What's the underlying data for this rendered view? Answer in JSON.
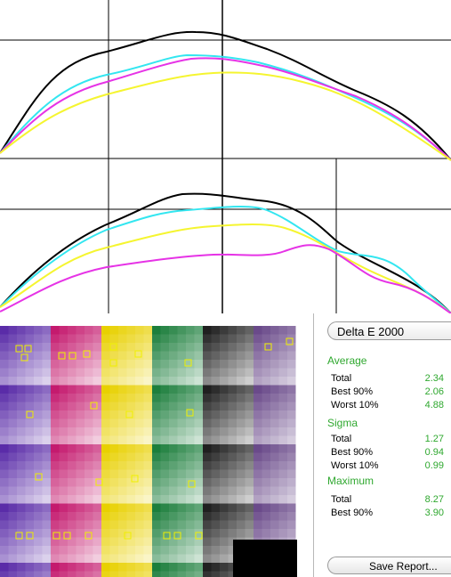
{
  "colors": {
    "black_curve": "#000000",
    "cyan_curve": "#33e6f0",
    "magenta_curve": "#e633e6",
    "yellow_curve": "#f5f530",
    "accent_green": "#2fa82f",
    "marker": "#f0f000"
  },
  "metric_select": {
    "value": "Delta E 2000"
  },
  "average": {
    "title": "Average",
    "rows": [
      {
        "label": "Total",
        "value": "2.34"
      },
      {
        "label": "Best 90%",
        "value": "2.06"
      },
      {
        "label": "Worst 10%",
        "value": "4.88"
      }
    ]
  },
  "sigma": {
    "title": "Sigma",
    "rows": [
      {
        "label": "Total",
        "value": "1.27"
      },
      {
        "label": "Best 90%",
        "value": "0.94"
      },
      {
        "label": "Worst 10%",
        "value": "0.99"
      }
    ]
  },
  "maximum": {
    "title": "Maximum",
    "rows": [
      {
        "label": "Total",
        "value": "8.27"
      },
      {
        "label": "Best 90%",
        "value": "3.90"
      }
    ]
  },
  "save_button": {
    "label": "Save Report..."
  }
}
